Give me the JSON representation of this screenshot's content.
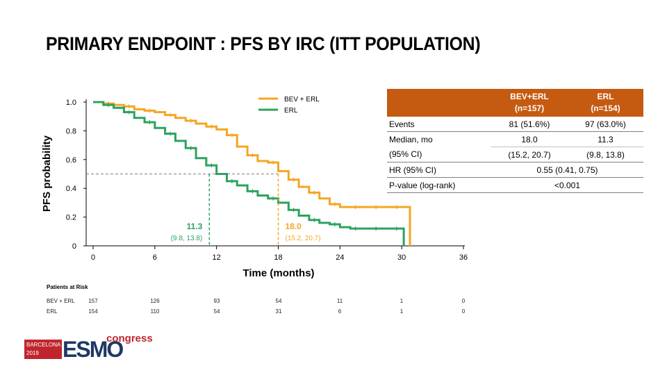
{
  "title": "PRIMARY ENDPOINT : PFS BY IRC (ITT POPULATION)",
  "colors": {
    "bev_erl": "#f5a623",
    "erl": "#2ca25f",
    "table_header": "#c55a11",
    "median_line": "#7f7f7f",
    "logo_red": "#c0252d",
    "logo_navy": "#1f3864"
  },
  "chart_data": {
    "type": "line",
    "subtype": "kaplan-meier step curves",
    "xlabel": "Time (months)",
    "ylabel": "PFS probability",
    "xlim": [
      0,
      36
    ],
    "ylim": [
      0,
      1
    ],
    "x_ticks": [
      "0",
      "6",
      "12",
      "18",
      "24",
      "30",
      "36"
    ],
    "y_ticks": [
      "0",
      "0.2",
      "0.4",
      "0.6",
      "0.8",
      "1.0"
    ],
    "legend_position": "top-right",
    "series": [
      {
        "name": "BEV + ERL",
        "color": "#f5a623",
        "x": [
          0,
          1,
          2,
          3,
          4,
          5,
          6,
          7,
          8,
          9,
          10,
          11,
          12,
          13,
          14,
          15,
          16,
          17,
          18,
          19,
          20,
          21,
          22,
          23,
          24,
          25,
          26,
          27,
          28,
          29,
          30,
          30.8
        ],
        "y": [
          1.0,
          0.99,
          0.98,
          0.97,
          0.95,
          0.94,
          0.93,
          0.91,
          0.89,
          0.87,
          0.85,
          0.83,
          0.81,
          0.77,
          0.69,
          0.63,
          0.59,
          0.58,
          0.52,
          0.46,
          0.41,
          0.37,
          0.33,
          0.29,
          0.27,
          0.27,
          0.27,
          0.27,
          0.27,
          0.27,
          0.27,
          0.0
        ]
      },
      {
        "name": "ERL",
        "color": "#2ca25f",
        "x": [
          0,
          1,
          2,
          3,
          4,
          5,
          6,
          7,
          8,
          9,
          10,
          11,
          12,
          13,
          14,
          15,
          16,
          17,
          18,
          19,
          20,
          21,
          22,
          23,
          24,
          25,
          26,
          27,
          28,
          29,
          30,
          30.2
        ],
        "y": [
          1.0,
          0.98,
          0.96,
          0.93,
          0.89,
          0.86,
          0.82,
          0.78,
          0.73,
          0.68,
          0.61,
          0.56,
          0.5,
          0.45,
          0.42,
          0.38,
          0.35,
          0.33,
          0.3,
          0.25,
          0.21,
          0.18,
          0.16,
          0.15,
          0.13,
          0.12,
          0.12,
          0.12,
          0.12,
          0.12,
          0.12,
          0.0
        ]
      }
    ],
    "median_reference_y": 0.5,
    "annotations": [
      {
        "series": "ERL",
        "x": 11.3,
        "value": "11.3",
        "ci": "(9.8, 13.8)",
        "color": "#2ca25f"
      },
      {
        "series": "BEV + ERL",
        "x": 18.0,
        "value": "18.0",
        "ci": "(15.2, 20.7)",
        "color": "#f5a623"
      }
    ],
    "legend": [
      "BEV + ERL",
      "ERL"
    ]
  },
  "risk_table": {
    "title": "Patients at Risk",
    "time_points": [
      0,
      6,
      12,
      18,
      24,
      30,
      36
    ],
    "rows": [
      {
        "label": "BEV + ERL",
        "values": [
          "157",
          "126",
          "93",
          "54",
          "11",
          "1",
          "0"
        ]
      },
      {
        "label": "ERL",
        "values": [
          "154",
          "110",
          "54",
          "31",
          "6",
          "1",
          "0"
        ]
      }
    ]
  },
  "stats_table": {
    "headers": [
      {
        "line1": "",
        "line2": ""
      },
      {
        "line1": "BEV+ERL",
        "line2": "(n=157)"
      },
      {
        "line1": "ERL",
        "line2": "(n=154)"
      }
    ],
    "rows": [
      {
        "label": "Events",
        "bev": "81 (51.6%)",
        "erl": "97 (63.0%)"
      },
      {
        "label": "Median, mo",
        "bev": "18.0",
        "erl": "11.3"
      },
      {
        "label": "(95% CI)",
        "bev": "(15.2, 20.7)",
        "erl": "(9.8, 13.8)"
      },
      {
        "label": "HR (95% CI)",
        "combined": "0.55 (0.41, 0.75)"
      },
      {
        "label": "P-value (log-rank)",
        "combined": "<0.001"
      }
    ]
  },
  "logo": {
    "city": "BARCELONA",
    "year": "2019",
    "brand": "ESMO",
    "suffix": "congress"
  }
}
